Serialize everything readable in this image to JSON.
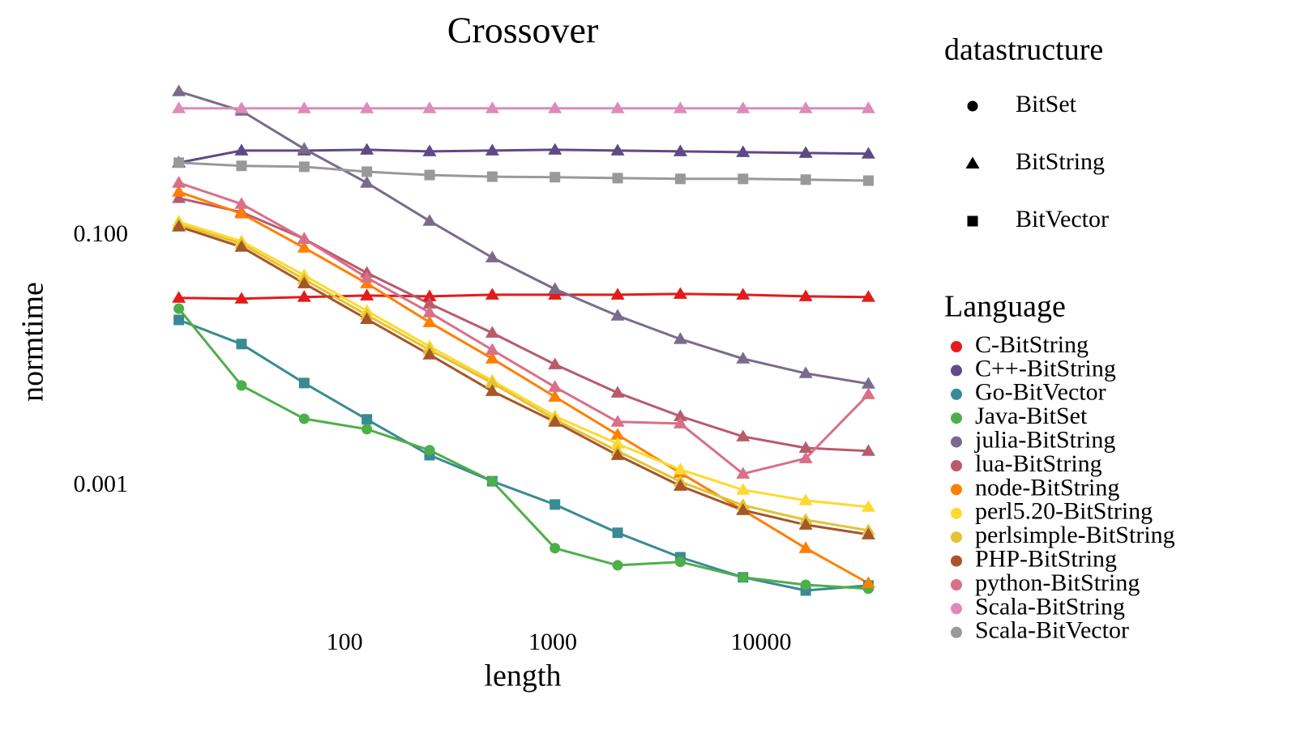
{
  "chart_data": {
    "type": "line",
    "title": "Crossover",
    "x_label": "length",
    "y_label": "normtime",
    "x": [
      16,
      32,
      64,
      128,
      256,
      512,
      1024,
      2048,
      4096,
      8192,
      16384,
      32768
    ],
    "xlim": [
      13.3,
      38700
    ],
    "xticks": [
      100,
      1000,
      10000
    ],
    "x_log": true,
    "ylim": [
      0.000115,
      1.72
    ],
    "yticks": [
      {
        "value": 0.1,
        "label": "0.100"
      },
      {
        "value": 0.001,
        "label": "0.001"
      }
    ],
    "y_log": true,
    "grid": false,
    "shape_legend": {
      "title": "datastructure",
      "entries": [
        {
          "label": "BitSet",
          "marker": "circle"
        },
        {
          "label": "BitString",
          "marker": "triangle"
        },
        {
          "label": "BitVector",
          "marker": "square"
        }
      ]
    },
    "legend_title": "Language",
    "series": [
      {
        "name": "C-BitString",
        "datastructure": "BitString",
        "color": "#e41a1c",
        "values": [
          0.0318,
          0.0313,
          0.0323,
          0.0332,
          0.0327,
          0.0337,
          0.0337,
          0.0337,
          0.0342,
          0.0337,
          0.0327,
          0.0323
        ]
      },
      {
        "name": "C++-BitString",
        "datastructure": "BitString",
        "color": "#5e4a86",
        "values": [
          0.383,
          0.478,
          0.478,
          0.485,
          0.471,
          0.478,
          0.485,
          0.478,
          0.471,
          0.464,
          0.457,
          0.451
        ]
      },
      {
        "name": "Go-BitVector",
        "datastructure": "BitVector",
        "color": "#3a8a93",
        "values": [
          0.0212,
          0.0136,
          0.00664,
          0.0034,
          0.00176,
          0.00109,
          0.00071,
          0.000422,
          0.000269,
          0.000186,
          0.000146,
          0.00016
        ]
      },
      {
        "name": "Java-BitSet",
        "datastructure": "BitSet",
        "color": "#4daf4a",
        "values": [
          0.0261,
          0.00635,
          0.00344,
          0.00284,
          0.00193,
          0.00109,
          0.000318,
          0.000232,
          0.000247,
          0.000186,
          0.000162,
          0.000151
        ]
      },
      {
        "name": "julia-BitString",
        "datastructure": "BitString",
        "color": "#7a6b8c",
        "values": [
          1.42,
          0.993,
          0.493,
          0.264,
          0.131,
          0.0668,
          0.0374,
          0.0229,
          0.0149,
          0.0104,
          0.00794,
          0.00655
        ]
      },
      {
        "name": "lua-BitString",
        "datastructure": "BitString",
        "color": "#b95b6c",
        "values": [
          0.199,
          0.154,
          0.0942,
          0.0504,
          0.0286,
          0.0167,
          0.00935,
          0.00555,
          0.0036,
          0.00248,
          0.00201,
          0.0019
        ]
      },
      {
        "name": "node-BitString",
        "datastructure": "BitString",
        "color": "#ff7f00",
        "values": [
          0.224,
          0.15,
          0.08,
          0.0415,
          0.0203,
          0.0104,
          0.00515,
          0.00256,
          0.00127,
          0.00064,
          0.000318,
          0.000167
        ]
      },
      {
        "name": "perl5.20-BitString",
        "datastructure": "BitString",
        "color": "#ffd92f",
        "values": [
          0.129,
          0.0901,
          0.0482,
          0.025,
          0.013,
          0.00694,
          0.0036,
          0.00217,
          0.00135,
          0.000929,
          0.000765,
          0.000679
        ]
      },
      {
        "name": "perlsimple-BitString",
        "datastructure": "BitString",
        "color": "#e3c234",
        "values": [
          0.123,
          0.0861,
          0.0447,
          0.0232,
          0.0122,
          0.00664,
          0.0034,
          0.0019,
          0.00108,
          0.0007,
          0.000535,
          0.000441
        ]
      },
      {
        "name": "PHP-BitString",
        "datastructure": "BitString",
        "color": "#a65628",
        "values": [
          0.118,
          0.0812,
          0.0415,
          0.0215,
          0.0112,
          0.00572,
          0.00325,
          0.00176,
          0.001,
          0.00064,
          0.000489,
          0.000409
        ]
      },
      {
        "name": "python-BitString",
        "datastructure": "BitString",
        "color": "#d96f88",
        "values": [
          0.264,
          0.179,
          0.0942,
          0.0461,
          0.0243,
          0.0122,
          0.00617,
          0.00325,
          0.00315,
          0.00125,
          0.00166,
          0.00539
        ]
      },
      {
        "name": "Scala-BitString",
        "datastructure": "BitString",
        "color": "#de8bb9",
        "values": [
          1.04,
          1.04,
          1.04,
          1.04,
          1.04,
          1.04,
          1.04,
          1.04,
          1.04,
          1.04,
          1.04,
          1.04
        ]
      },
      {
        "name": "Scala-BitVector",
        "datastructure": "BitVector",
        "color": "#999999",
        "values": [
          0.383,
          0.361,
          0.355,
          0.324,
          0.305,
          0.296,
          0.293,
          0.288,
          0.284,
          0.284,
          0.28,
          0.275
        ]
      }
    ]
  }
}
